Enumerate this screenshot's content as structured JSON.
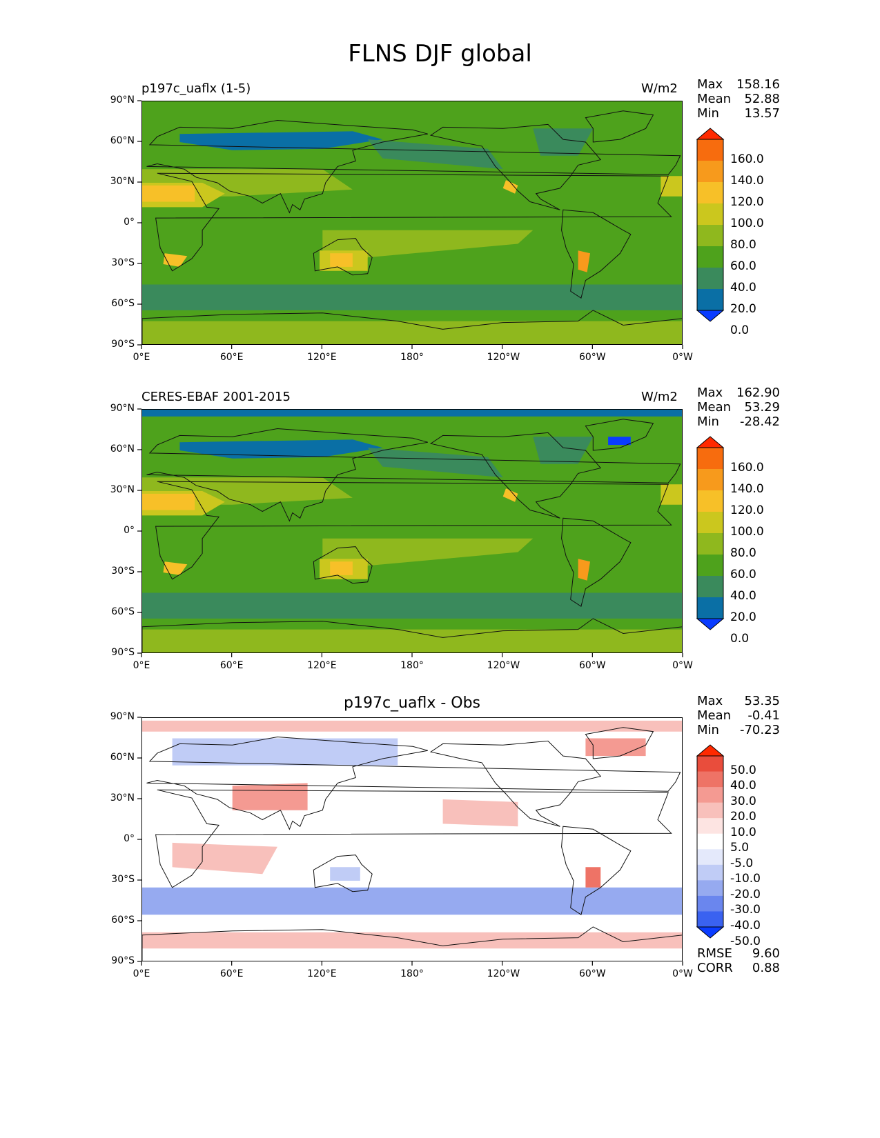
{
  "figure": {
    "title": "FLNS DJF global"
  },
  "axes": {
    "lat_ticks": [
      "90°N",
      "60°N",
      "30°N",
      "0°",
      "30°S",
      "60°S",
      "90°S"
    ],
    "lon_ticks": [
      "0°E",
      "60°E",
      "120°E",
      "180°",
      "120°W",
      "60°W",
      "0°W"
    ]
  },
  "colors": {
    "sequential": [
      "#0a3cff",
      "#0a6fa5",
      "#3a8a5c",
      "#4ea21c",
      "#8fb81e",
      "#cbc71e",
      "#f7c028",
      "#f79a1c",
      "#f76c0e",
      "#ff2a00"
    ],
    "diverging": [
      "#0a3cff",
      "#3a62f0",
      "#6a86ee",
      "#96aaf0",
      "#c0ccf6",
      "#e4e9fb",
      "#ffffff",
      "#fde4e2",
      "#f8c0bb",
      "#f49a92",
      "#ee7366",
      "#e94d3c",
      "#ff2a00"
    ],
    "coastline": "#111111"
  },
  "panels": [
    {
      "left_title": "p197c_uaflx (1-5)",
      "right_title": "W/m2",
      "center_title": "",
      "stats": [
        {
          "label": "Max",
          "value": "158.16"
        },
        {
          "label": "Mean",
          "value": "52.88"
        },
        {
          "label": "Min",
          "value": "13.57"
        }
      ],
      "colorbar": {
        "labels": [
          "160.0",
          "140.0",
          "120.0",
          "100.0",
          "80.0",
          "60.0",
          "40.0",
          "20.0",
          "0.0"
        ]
      },
      "extra_stats": []
    },
    {
      "left_title": "CERES-EBAF 2001-2015",
      "right_title": "W/m2",
      "center_title": "",
      "stats": [
        {
          "label": "Max",
          "value": "162.90"
        },
        {
          "label": "Mean",
          "value": "53.29"
        },
        {
          "label": "Min",
          "value": "-28.42"
        }
      ],
      "colorbar": {
        "labels": [
          "160.0",
          "140.0",
          "120.0",
          "100.0",
          "80.0",
          "60.0",
          "40.0",
          "20.0",
          "0.0"
        ]
      },
      "extra_stats": []
    },
    {
      "left_title": "",
      "right_title": "",
      "center_title": "p197c_uaflx - Obs",
      "stats": [
        {
          "label": "Max",
          "value": "53.35"
        },
        {
          "label": "Mean",
          "value": "-0.41"
        },
        {
          "label": "Min",
          "value": "-70.23"
        }
      ],
      "colorbar": {
        "labels": [
          "50.0",
          "40.0",
          "30.0",
          "20.0",
          "10.0",
          "5.0",
          "-5.0",
          "-10.0",
          "-20.0",
          "-30.0",
          "-40.0",
          "-50.0"
        ]
      },
      "extra_stats": [
        {
          "label": "RMSE",
          "value": "9.60"
        },
        {
          "label": "CORR",
          "value": "0.88"
        }
      ]
    }
  ],
  "chart_data": [
    {
      "type": "heatmap",
      "title": "p197c_uaflx (1-5)",
      "units": "W/m2",
      "xlim": [
        0,
        360
      ],
      "ylim": [
        -90,
        90
      ],
      "levels": [
        0,
        20,
        40,
        60,
        80,
        100,
        120,
        140,
        160
      ],
      "max": 158.16,
      "mean": 52.88,
      "min": 13.57
    },
    {
      "type": "heatmap",
      "title": "CERES-EBAF 2001-2015",
      "units": "W/m2",
      "xlim": [
        0,
        360
      ],
      "ylim": [
        -90,
        90
      ],
      "levels": [
        0,
        20,
        40,
        60,
        80,
        100,
        120,
        140,
        160
      ],
      "max": 162.9,
      "mean": 53.29,
      "min": -28.42
    },
    {
      "type": "heatmap",
      "title": "p197c_uaflx - Obs",
      "xlim": [
        0,
        360
      ],
      "ylim": [
        -90,
        90
      ],
      "levels": [
        -50,
        -40,
        -30,
        -20,
        -10,
        -5,
        5,
        10,
        20,
        30,
        40,
        50
      ],
      "max": 53.35,
      "mean": -0.41,
      "min": -70.23,
      "rmse": 9.6,
      "corr": 0.88
    }
  ]
}
